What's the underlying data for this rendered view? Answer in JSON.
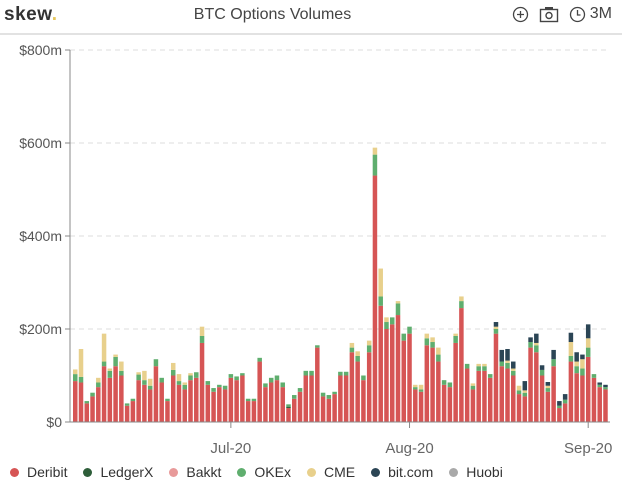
{
  "header": {
    "logo": "skew",
    "logo_dot": ".",
    "title": "BTC Options Volumes",
    "range_label": "3M"
  },
  "icons": [
    "plus-circle-icon",
    "camera-icon",
    "clock-icon"
  ],
  "chart_data": {
    "type": "bar",
    "stacked": true,
    "title": "BTC Options Volumes",
    "xlabel": "",
    "ylabel": "",
    "x_start": "2020-06-04",
    "x_ticks": [
      {
        "label": "Jul-20",
        "day_index": 27
      },
      {
        "label": "Aug-20",
        "day_index": 58
      },
      {
        "label": "Sep-20",
        "day_index": 89
      }
    ],
    "y_ticks": [
      "$0",
      "$200m",
      "$400m",
      "$600m",
      "$800m"
    ],
    "y_tick_values": [
      0,
      200,
      400,
      600,
      800
    ],
    "ylim": [
      0,
      800
    ],
    "grid": true,
    "legend_position": "bottom",
    "series": [
      {
        "name": "Deribit",
        "color": "#d65555",
        "values": [
          88,
          85,
          40,
          55,
          75,
          120,
          95,
          120,
          100,
          35,
          45,
          90,
          80,
          70,
          120,
          85,
          45,
          100,
          80,
          70,
          90,
          95,
          170,
          80,
          65,
          75,
          70,
          95,
          90,
          100,
          45,
          45,
          130,
          75,
          85,
          90,
          75,
          30,
          50,
          65,
          100,
          100,
          160,
          55,
          50,
          60,
          100,
          100,
          150,
          130,
          90,
          150,
          530,
          250,
          200,
          210,
          230,
          175,
          190,
          70,
          65,
          165,
          160,
          130,
          80,
          75,
          170,
          245,
          115,
          70,
          110,
          110,
          95,
          190,
          120,
          115,
          100,
          60,
          55,
          160,
          150,
          100,
          65,
          120,
          30,
          40,
          130,
          105,
          100,
          140,
          95,
          75,
          70
        ]
      },
      {
        "name": "LedgerX",
        "color": "#2e5e3a",
        "values": [
          0,
          0,
          0,
          0,
          0,
          0,
          0,
          0,
          0,
          0,
          0,
          0,
          0,
          0,
          0,
          0,
          0,
          0,
          0,
          0,
          0,
          0,
          0,
          0,
          0,
          0,
          0,
          0,
          0,
          0,
          0,
          0,
          0,
          0,
          0,
          0,
          0,
          3,
          0,
          0,
          0,
          0,
          0,
          0,
          0,
          0,
          0,
          0,
          0,
          0,
          0,
          0,
          0,
          0,
          0,
          0,
          0,
          0,
          0,
          0,
          0,
          0,
          0,
          0,
          0,
          0,
          0,
          0,
          0,
          0,
          0,
          0,
          0,
          0,
          0,
          0,
          0,
          0,
          0,
          0,
          0,
          0,
          0,
          0,
          0,
          0,
          0,
          0,
          0,
          0,
          0,
          0,
          0
        ]
      },
      {
        "name": "Bakkt",
        "color": "#e89a9a",
        "values": [
          0,
          0,
          0,
          0,
          0,
          0,
          0,
          0,
          0,
          0,
          0,
          0,
          0,
          0,
          0,
          0,
          0,
          0,
          0,
          0,
          0,
          0,
          0,
          0,
          0,
          0,
          0,
          0,
          0,
          0,
          0,
          0,
          0,
          0,
          0,
          0,
          0,
          0,
          0,
          0,
          0,
          0,
          0,
          0,
          0,
          0,
          0,
          0,
          0,
          0,
          0,
          0,
          0,
          0,
          0,
          0,
          0,
          0,
          0,
          0,
          0,
          0,
          0,
          0,
          0,
          0,
          0,
          0,
          0,
          0,
          0,
          0,
          0,
          0,
          0,
          0,
          0,
          0,
          0,
          0,
          0,
          0,
          0,
          0,
          0,
          0,
          0,
          0,
          0,
          0,
          0,
          0,
          0
        ]
      },
      {
        "name": "OKEx",
        "color": "#5fae6e",
        "values": [
          15,
          12,
          5,
          8,
          10,
          10,
          15,
          20,
          10,
          5,
          5,
          12,
          10,
          8,
          15,
          10,
          5,
          12,
          8,
          10,
          10,
          12,
          15,
          8,
          8,
          5,
          8,
          8,
          8,
          5,
          5,
          5,
          8,
          8,
          10,
          10,
          10,
          5,
          8,
          8,
          10,
          10,
          5,
          8,
          8,
          5,
          8,
          8,
          10,
          12,
          10,
          15,
          45,
          20,
          15,
          15,
          25,
          15,
          15,
          5,
          5,
          15,
          12,
          15,
          10,
          10,
          15,
          15,
          10,
          8,
          10,
          10,
          8,
          10,
          10,
          12,
          10,
          8,
          8,
          12,
          15,
          12,
          8,
          15,
          5,
          8,
          12,
          15,
          15,
          20,
          8,
          5,
          5
        ]
      },
      {
        "name": "CME",
        "color": "#e8d08c",
        "values": [
          10,
          60,
          0,
          0,
          10,
          60,
          5,
          5,
          20,
          0,
          0,
          5,
          20,
          15,
          0,
          0,
          0,
          15,
          15,
          5,
          5,
          0,
          20,
          0,
          0,
          0,
          0,
          0,
          0,
          0,
          0,
          0,
          0,
          0,
          0,
          0,
          0,
          0,
          0,
          0,
          0,
          0,
          0,
          0,
          0,
          0,
          0,
          0,
          10,
          10,
          0,
          10,
          15,
          60,
          10,
          0,
          5,
          0,
          0,
          5,
          10,
          10,
          10,
          15,
          0,
          0,
          5,
          10,
          0,
          5,
          5,
          5,
          0,
          5,
          0,
          5,
          5,
          10,
          5,
          0,
          5,
          0,
          5,
          0,
          0,
          0,
          30,
          10,
          20,
          20,
          0,
          0,
          0
        ]
      },
      {
        "name": "bit.com",
        "color": "#2b4555",
        "values": [
          0,
          0,
          0,
          0,
          0,
          0,
          0,
          0,
          0,
          0,
          0,
          0,
          0,
          0,
          0,
          0,
          0,
          0,
          0,
          0,
          0,
          0,
          0,
          0,
          0,
          0,
          0,
          0,
          0,
          0,
          0,
          0,
          0,
          0,
          0,
          0,
          0,
          0,
          0,
          0,
          0,
          0,
          0,
          0,
          0,
          0,
          0,
          0,
          0,
          0,
          0,
          0,
          0,
          0,
          0,
          0,
          0,
          0,
          0,
          0,
          0,
          0,
          0,
          0,
          0,
          0,
          0,
          0,
          0,
          0,
          0,
          0,
          0,
          10,
          25,
          25,
          15,
          0,
          20,
          10,
          20,
          10,
          8,
          20,
          10,
          12,
          20,
          20,
          10,
          30,
          0,
          5,
          5
        ]
      },
      {
        "name": "Huobi",
        "color": "#a9a9a9",
        "values": [
          0,
          0,
          0,
          0,
          0,
          0,
          0,
          0,
          0,
          0,
          0,
          0,
          0,
          0,
          0,
          0,
          0,
          0,
          0,
          0,
          0,
          0,
          0,
          0,
          0,
          0,
          0,
          0,
          0,
          0,
          0,
          0,
          0,
          0,
          0,
          0,
          0,
          0,
          0,
          0,
          0,
          0,
          0,
          0,
          0,
          0,
          0,
          0,
          0,
          0,
          0,
          0,
          0,
          0,
          0,
          0,
          0,
          0,
          0,
          0,
          0,
          0,
          0,
          0,
          0,
          0,
          0,
          0,
          0,
          0,
          0,
          0,
          0,
          0,
          0,
          0,
          0,
          0,
          0,
          0,
          0,
          0,
          0,
          0,
          0,
          0,
          0,
          0,
          0,
          0,
          0,
          0,
          0
        ]
      }
    ]
  }
}
